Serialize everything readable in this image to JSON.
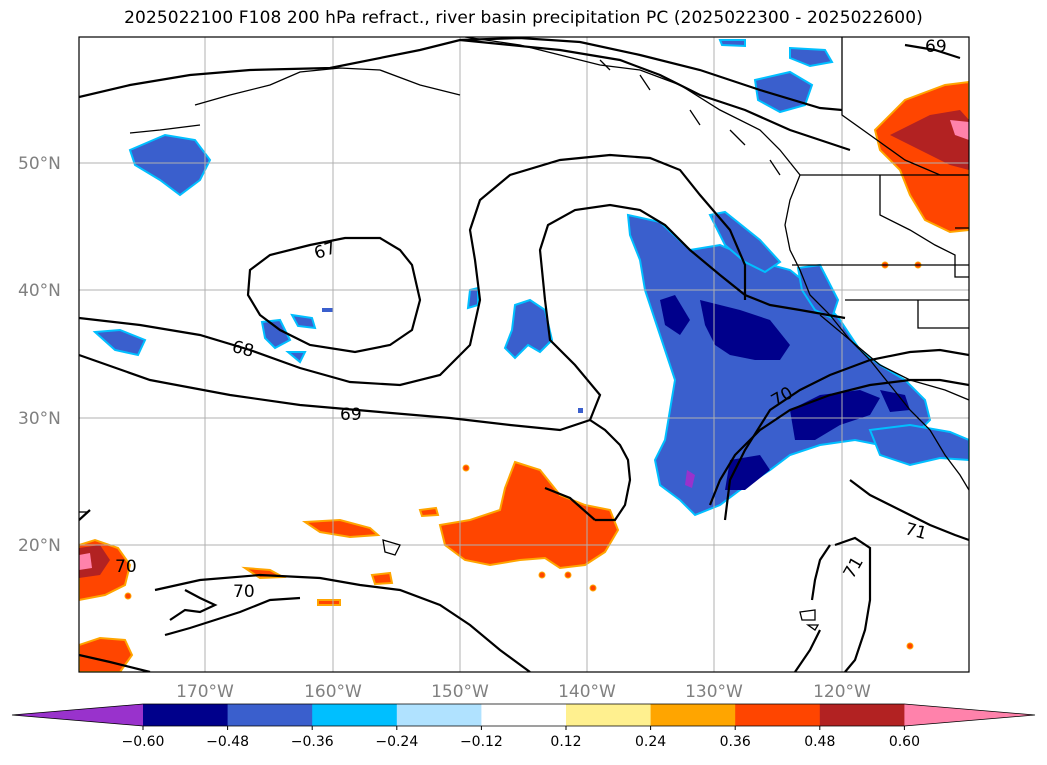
{
  "title": "2025022100 F108 200 hPa refract., river basin precipitation PC (2025022300 - 2025022600)",
  "lat_labels": [
    "50°N",
    "40°N",
    "30°N",
    "20°N"
  ],
  "lon_labels": [
    "170°W",
    "160°W",
    "150°W",
    "140°W",
    "130°W",
    "120°W"
  ],
  "contour_labels": [
    "67",
    "68",
    "69",
    "69",
    "70",
    "70",
    "70",
    "71",
    "71"
  ],
  "colorbar": {
    "ticks": [
      "−0.60",
      "−0.48",
      "−0.36",
      "−0.24",
      "−0.12",
      "0.12",
      "0.24",
      "0.36",
      "0.48",
      "0.60"
    ],
    "colors": [
      "#9932cc",
      "#00008b",
      "#3a5fcd",
      "#00bfff",
      "#b0e2ff",
      "#ffffff",
      "#fff08f",
      "#ffa500",
      "#ff4500",
      "#b22222",
      "#ff82ab"
    ]
  }
}
